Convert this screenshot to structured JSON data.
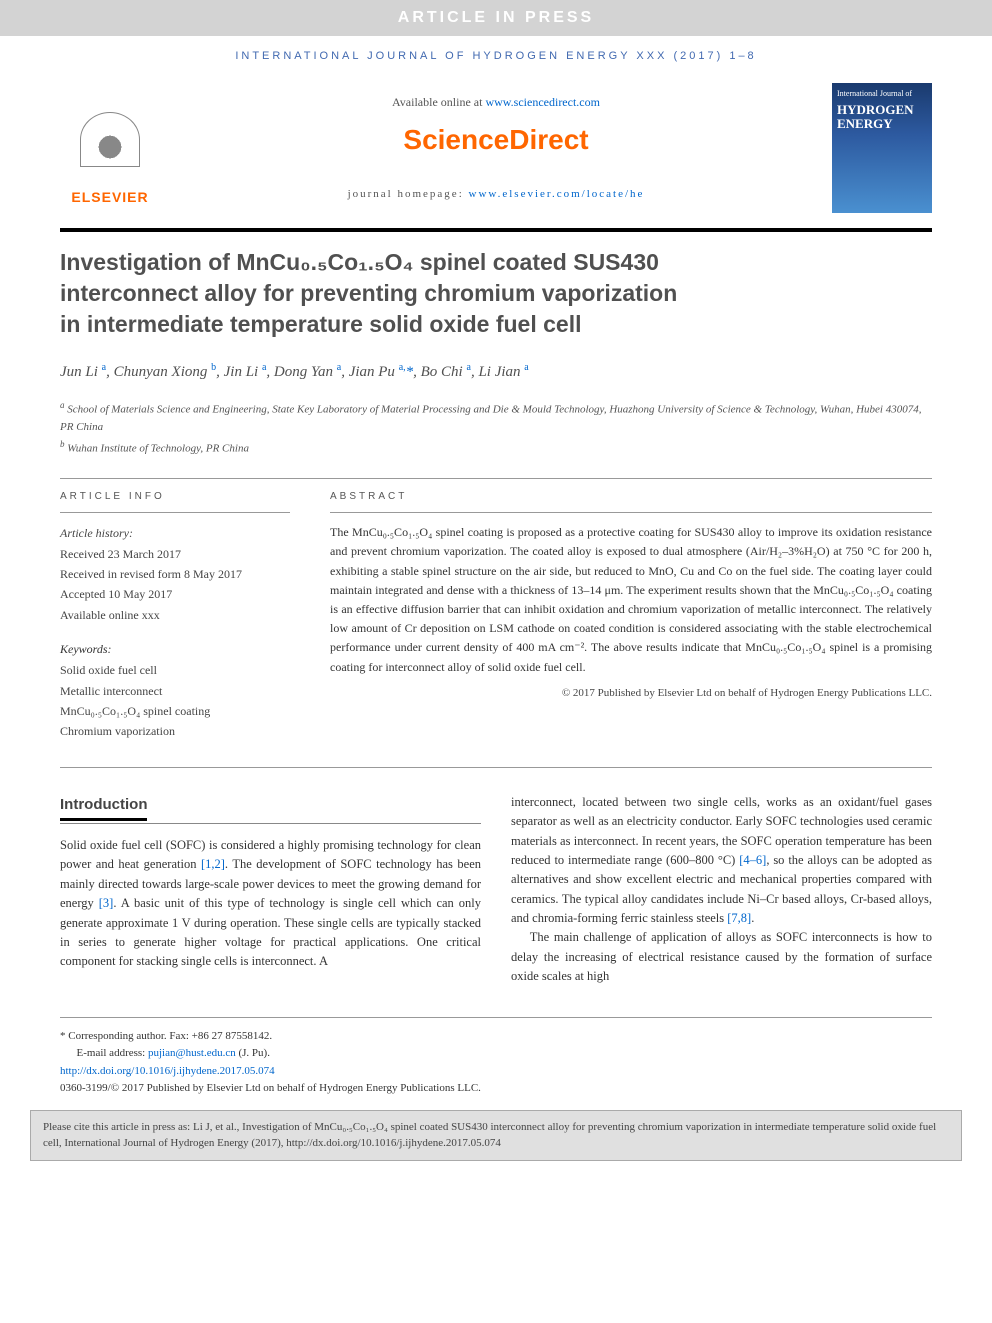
{
  "banner": "ARTICLE IN PRESS",
  "journal_header": "INTERNATIONAL JOURNAL OF HYDROGEN ENERGY XXX (2017) 1–8",
  "header": {
    "available": "Available online at ",
    "available_link": "www.sciencedirect.com",
    "brand": "ScienceDirect",
    "homepage_label": "journal homepage: ",
    "homepage_link": "www.elsevier.com/locate/he",
    "elsevier": "ELSEVIER",
    "cover_small": "International Journal of",
    "cover_title": "HYDROGEN ENERGY"
  },
  "title": "Investigation of MnCu₀.₅Co₁.₅O₄ spinel coated SUS430 interconnect alloy for preventing chromium vaporization in intermediate temperature solid oxide fuel cell",
  "authors_html": "Jun Li <sup>a</sup>, Chunyan Xiong <sup>b</sup>, Jin Li <sup>a</sup>, Dong Yan <sup>a</sup>, Jian Pu <sup>a,</sup><span class='corr'>*</span>, Bo Chi <sup>a</sup>, Li Jian <sup>a</sup>",
  "affiliations": {
    "a": "School of Materials Science and Engineering, State Key Laboratory of Material Processing and Die & Mould Technology, Huazhong University of Science & Technology, Wuhan, Hubei 430074, PR China",
    "b": "Wuhan Institute of Technology, PR China"
  },
  "article_info": {
    "heading": "ARTICLE INFO",
    "history_label": "Article history:",
    "received": "Received 23 March 2017",
    "revised": "Received in revised form 8 May 2017",
    "accepted": "Accepted 10 May 2017",
    "online": "Available online xxx",
    "keywords_label": "Keywords:",
    "keywords": [
      "Solid oxide fuel cell",
      "Metallic interconnect",
      "MnCu₀.₅Co₁.₅O₄ spinel coating",
      "Chromium vaporization"
    ]
  },
  "abstract": {
    "heading": "ABSTRACT",
    "text": "The MnCu₀.₅Co₁.₅O₄ spinel coating is proposed as a protective coating for SUS430 alloy to improve its oxidation resistance and prevent chromium vaporization. The coated alloy is exposed to dual atmosphere (Air/H₂–3%H₂O) at 750 °C for 200 h, exhibiting a stable spinel structure on the air side, but reduced to MnO, Cu and Co on the fuel side. The coating layer could maintain integrated and dense with a thickness of 13–14 μm. The experiment results shown that the MnCu₀.₅Co₁.₅O₄ coating is an effective diffusion barrier that can inhibit oxidation and chromium vaporization of metallic interconnect. The relatively low amount of Cr deposition on LSM cathode on coated condition is considered associating with the stable electrochemical performance under current density of 400 mA cm⁻². The above results indicate that MnCu₀.₅Co₁.₅O₄ spinel is a promising coating for interconnect alloy of solid oxide fuel cell.",
    "copyright": "© 2017 Published by Elsevier Ltd on behalf of Hydrogen Energy Publications LLC."
  },
  "body": {
    "intro_heading": "Introduction",
    "col1": "Solid oxide fuel cell (SOFC) is considered a highly promising technology for clean power and heat generation [1,2]. The development of SOFC technology has been mainly directed towards large-scale power devices to meet the growing demand for energy [3]. A basic unit of this type of technology is single cell which can only generate approximate 1 V during operation. These single cells are typically stacked in series to generate higher voltage for practical applications. One critical component for stacking single cells is interconnect. A",
    "col2_p1": "interconnect, located between two single cells, works as an oxidant/fuel gases separator as well as an electricity conductor. Early SOFC technologies used ceramic materials as interconnect. In recent years, the SOFC operation temperature has been reduced to intermediate range (600–800 °C) [4–6], so the alloys can be adopted as alternatives and show excellent electric and mechanical properties compared with ceramics. The typical alloy candidates include Ni–Cr based alloys, Cr-based alloys, and chromia-forming ferric stainless steels [7,8].",
    "col2_p2": "The main challenge of application of alloys as SOFC interconnects is how to delay the increasing of electrical resistance caused by the formation of surface oxide scales at high"
  },
  "footer": {
    "corr_label": "* Corresponding author. Fax: +86 27 87558142.",
    "email_label": "E-mail address: ",
    "email": "pujian@hust.edu.cn",
    "email_name": " (J. Pu).",
    "doi": "http://dx.doi.org/10.1016/j.ijhydene.2017.05.074",
    "issn_line": "0360-3199/© 2017 Published by Elsevier Ltd on behalf of Hydrogen Energy Publications LLC."
  },
  "cite_box": "Please cite this article in press as: Li J, et al., Investigation of MnCu₀.₅Co₁.₅O₄ spinel coated SUS430 interconnect alloy for preventing chromium vaporization in intermediate temperature solid oxide fuel cell, International Journal of Hydrogen Energy (2017), http://dx.doi.org/10.1016/j.ijhydene.2017.05.074",
  "colors": {
    "banner_bg": "#d3d3d3",
    "banner_fg": "#ffffff",
    "link": "#0066cc",
    "orange": "#ff6600",
    "journal_header": "#4169b0",
    "text": "#333333",
    "cover_grad_top": "#1a3a6e",
    "cover_grad_bot": "#4a90d0",
    "cite_bg": "#e0e0e0"
  }
}
